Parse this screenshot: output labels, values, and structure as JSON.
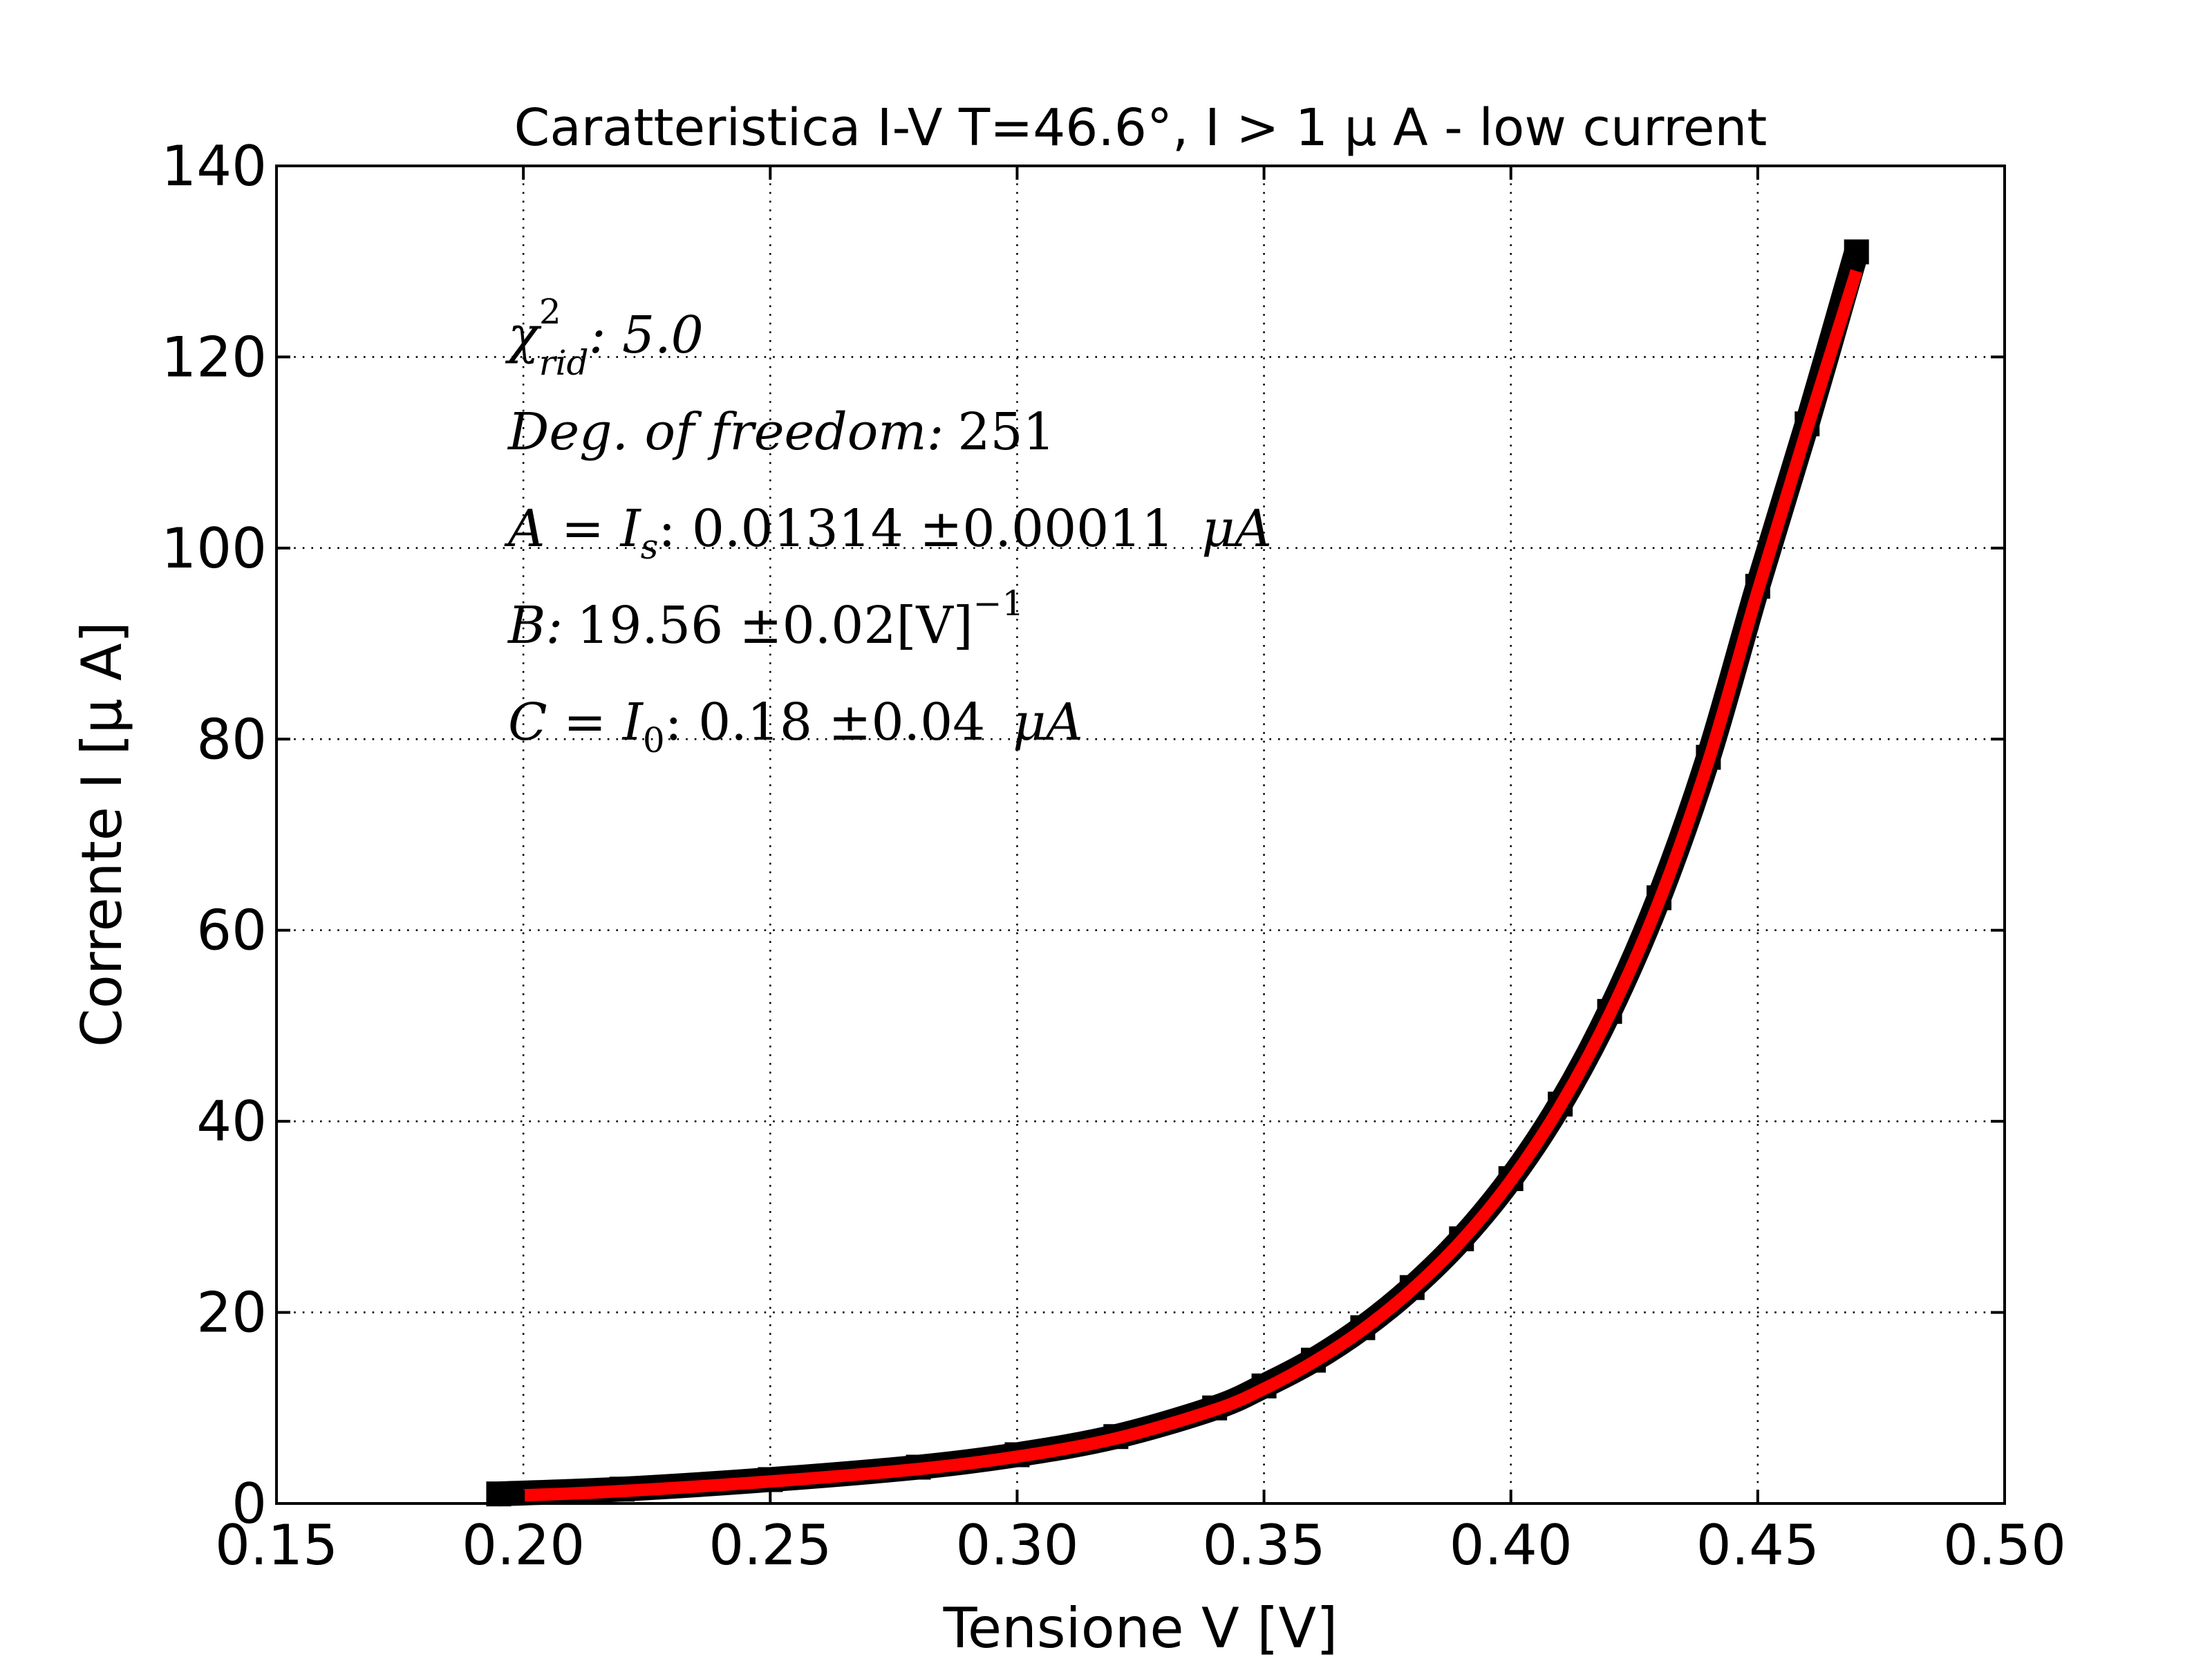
{
  "chart_data": {
    "type": "line",
    "title": "Caratteristica I-V T=46.6°, I > 1 μ A - low current",
    "xlabel": "Tensione V [V]",
    "ylabel": "Corrente I [μ A]",
    "xlim": [
      0.15,
      0.5
    ],
    "ylim": [
      0,
      140
    ],
    "xticks": [
      "0.15",
      "0.20",
      "0.25",
      "0.30",
      "0.35",
      "0.40",
      "0.45",
      "0.50"
    ],
    "yticks": [
      "0",
      "20",
      "40",
      "60",
      "80",
      "100",
      "120",
      "140"
    ],
    "grid": true,
    "colors": {
      "data": "#000000",
      "fit": "#ff0000"
    },
    "series": [
      {
        "style": "black square markers",
        "x": [
          0.195,
          0.22,
          0.25,
          0.28,
          0.3,
          0.32,
          0.34,
          0.35,
          0.36,
          0.37,
          0.38,
          0.39,
          0.4,
          0.41,
          0.42,
          0.43,
          0.44,
          0.45,
          0.46,
          0.47
        ],
        "y": [
          1.0,
          1.5,
          2.5,
          3.8,
          5.1,
          7.0,
          10.0,
          12.3,
          15.0,
          18.4,
          22.6,
          27.7,
          34.0,
          41.8,
          51.5,
          63.4,
          78.1,
          96.0,
          113.0,
          131.0
        ]
      },
      {
        "style": "red fit line",
        "x": [
          0.2,
          0.22,
          0.25,
          0.28,
          0.3,
          0.32,
          0.34,
          0.35,
          0.36,
          0.37,
          0.38,
          0.39,
          0.4,
          0.41,
          0.42,
          0.43,
          0.44,
          0.45,
          0.46,
          0.47
        ],
        "y": [
          0.85,
          1.3,
          2.3,
          3.6,
          4.9,
          6.8,
          9.8,
          12.0,
          14.8,
          18.2,
          22.4,
          27.5,
          33.8,
          41.6,
          51.2,
          63.0,
          77.7,
          95.5,
          112.5,
          129.0
        ]
      }
    ],
    "annotations": {
      "chi": {
        "sym": "χ",
        "sup": "2",
        "sub": "rid",
        "value": ": 5.0"
      },
      "dof": {
        "label": "Deg. of freedom:",
        "value": "251"
      },
      "a": {
        "lhs": "A = I",
        "sub": "s",
        "value": ": 0.01314 ±0.00011",
        "unit": "μA"
      },
      "b": {
        "label": "B:",
        "value": "19.56 ±0.02[V]",
        "sup": "−1"
      },
      "c": {
        "lhs": "C = I",
        "sub": "0",
        "value": ": 0.18 ±0.04",
        "unit": "μA"
      }
    }
  }
}
